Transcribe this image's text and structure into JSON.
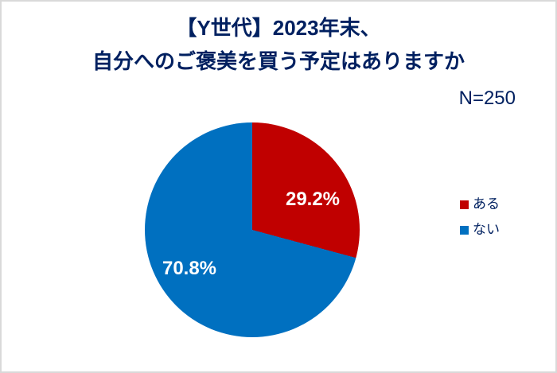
{
  "frame": {
    "background_color": "#FFFFFF",
    "border_color": "#D9D9D9"
  },
  "title": {
    "line1": "【Y世代】2023年末、",
    "line2": "自分へのご褒美を買う予定はありますか",
    "color": "#002060"
  },
  "chart_data": {
    "type": "pie",
    "title": "【Y世代】2023年末、自分へのご褒美を買う予定はありますか",
    "n_label": "N=250",
    "sample_size": 250,
    "start_angle_deg": 0,
    "direction": "clockwise",
    "legend_position": "right",
    "data_label_color": "#FFFFFF",
    "slices": [
      {
        "label": "ある",
        "value": 29.2,
        "display": "29.2%",
        "color": "#C00000"
      },
      {
        "label": "ない",
        "value": 70.8,
        "display": "70.8%",
        "color": "#0070C0"
      }
    ]
  }
}
